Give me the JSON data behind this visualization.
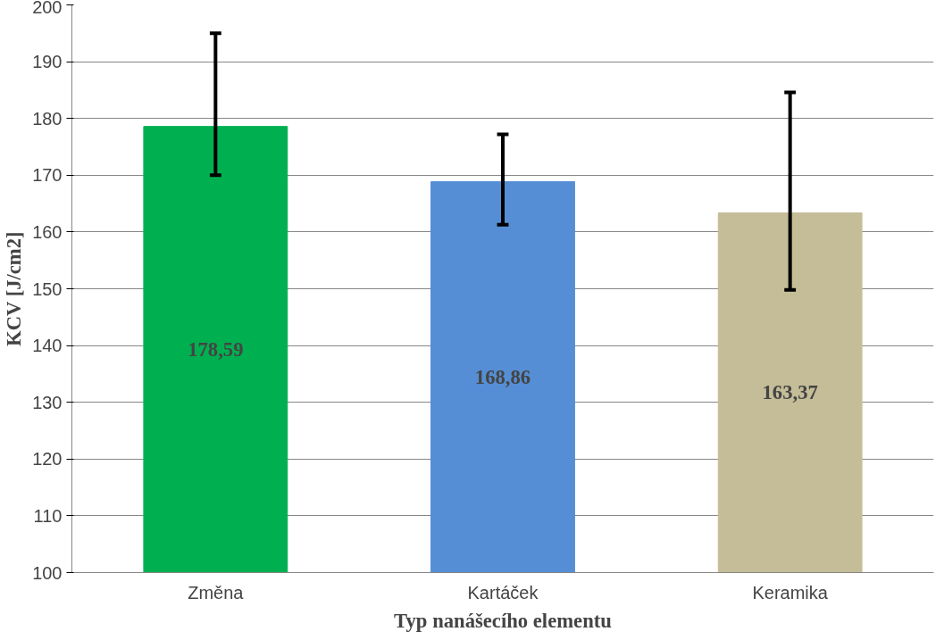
{
  "chart_data": {
    "type": "bar",
    "categories": [
      "Změna",
      "Kartáček",
      "Keramika"
    ],
    "values": [
      178.59,
      168.86,
      163.37
    ],
    "colors": [
      "#00b050",
      "#558ed5",
      "#c4bd97"
    ],
    "errors": [
      [
        170,
        195
      ],
      [
        161.3,
        177.2
      ],
      [
        149.8,
        184.6
      ]
    ],
    "value_labels": [
      "178,59",
      "168,86",
      "163,37"
    ],
    "xlabel": "Typ nanášecího elementu",
    "ylabel": "KCV [J/cm2]",
    "ylim": [
      100,
      200
    ],
    "yticks": [
      100,
      110,
      120,
      130,
      140,
      150,
      160,
      170,
      180,
      190,
      200
    ],
    "grid": "y"
  }
}
